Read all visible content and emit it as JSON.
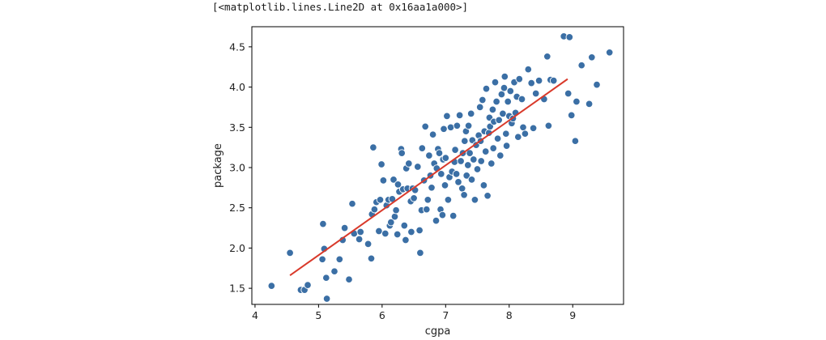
{
  "output_text": "[<matplotlib.lines.Line2D at 0x16aa1a000>]",
  "colors": {
    "points": "#3b6fa5",
    "point_edge": "#ffffff",
    "line": "#d93a2b",
    "axes": "#000000"
  },
  "chart_data": {
    "type": "scatter",
    "title": "",
    "xlabel": "cgpa",
    "ylabel": "package",
    "xlim": [
      3.95,
      9.8
    ],
    "ylim": [
      1.3,
      4.75
    ],
    "xticks": [
      4,
      5,
      6,
      7,
      8,
      9
    ],
    "yticks": [
      1.5,
      2.0,
      2.5,
      3.0,
      3.5,
      4.0,
      4.5
    ],
    "ytick_labels": [
      "1.5",
      "2.0",
      "2.5",
      "3.0",
      "3.5",
      "4.0",
      "4.5"
    ],
    "grid": false,
    "legend": false,
    "series": [
      {
        "type": "scatter",
        "points": [
          [
            4.26,
            1.53
          ],
          [
            4.55,
            1.94
          ],
          [
            4.72,
            1.48
          ],
          [
            4.78,
            1.48
          ],
          [
            4.83,
            1.54
          ],
          [
            5.07,
            2.3
          ],
          [
            5.06,
            1.86
          ],
          [
            5.09,
            1.99
          ],
          [
            5.12,
            1.63
          ],
          [
            5.13,
            1.37
          ],
          [
            5.25,
            1.71
          ],
          [
            5.33,
            1.86
          ],
          [
            5.38,
            2.1
          ],
          [
            5.41,
            2.25
          ],
          [
            5.48,
            1.61
          ],
          [
            5.53,
            2.55
          ],
          [
            5.56,
            2.18
          ],
          [
            5.64,
            2.11
          ],
          [
            5.66,
            2.2
          ],
          [
            5.78,
            2.05
          ],
          [
            5.83,
            1.87
          ],
          [
            5.86,
            3.25
          ],
          [
            5.84,
            2.42
          ],
          [
            5.88,
            2.48
          ],
          [
            5.91,
            2.57
          ],
          [
            5.95,
            2.21
          ],
          [
            5.97,
            2.6
          ],
          [
            5.99,
            3.04
          ],
          [
            6.02,
            2.84
          ],
          [
            6.05,
            2.18
          ],
          [
            6.07,
            2.53
          ],
          [
            6.1,
            2.6
          ],
          [
            6.12,
            2.28
          ],
          [
            6.14,
            2.32
          ],
          [
            6.16,
            2.61
          ],
          [
            6.18,
            2.85
          ],
          [
            6.2,
            2.39
          ],
          [
            6.22,
            2.47
          ],
          [
            6.24,
            2.17
          ],
          [
            6.25,
            2.79
          ],
          [
            6.27,
            2.7
          ],
          [
            6.3,
            3.23
          ],
          [
            6.31,
            3.18
          ],
          [
            6.33,
            2.73
          ],
          [
            6.35,
            2.28
          ],
          [
            6.37,
            2.1
          ],
          [
            6.38,
            2.99
          ],
          [
            6.4,
            2.74
          ],
          [
            6.42,
            3.05
          ],
          [
            6.45,
            2.58
          ],
          [
            6.46,
            2.2
          ],
          [
            6.48,
            2.74
          ],
          [
            6.5,
            2.62
          ],
          [
            6.52,
            2.72
          ],
          [
            6.56,
            3.01
          ],
          [
            6.59,
            2.22
          ],
          [
            6.6,
            1.94
          ],
          [
            6.62,
            2.47
          ],
          [
            6.63,
            3.24
          ],
          [
            6.66,
            2.84
          ],
          [
            6.68,
            3.51
          ],
          [
            6.7,
            2.48
          ],
          [
            6.72,
            2.6
          ],
          [
            6.74,
            3.15
          ],
          [
            6.76,
            2.9
          ],
          [
            6.78,
            2.75
          ],
          [
            6.8,
            3.41
          ],
          [
            6.82,
            3.05
          ],
          [
            6.85,
            2.34
          ],
          [
            6.86,
            2.99
          ],
          [
            6.88,
            3.23
          ],
          [
            6.9,
            3.18
          ],
          [
            6.92,
            2.48
          ],
          [
            6.93,
            2.92
          ],
          [
            6.95,
            2.41
          ],
          [
            6.96,
            3.1
          ],
          [
            6.97,
            3.48
          ],
          [
            6.99,
            2.78
          ],
          [
            7.0,
            3.12
          ],
          [
            7.02,
            3.64
          ],
          [
            7.04,
            2.6
          ],
          [
            7.06,
            2.88
          ],
          [
            7.08,
            3.5
          ],
          [
            7.1,
            2.95
          ],
          [
            7.12,
            2.4
          ],
          [
            7.14,
            3.07
          ],
          [
            7.15,
            3.22
          ],
          [
            7.17,
            2.92
          ],
          [
            7.18,
            3.52
          ],
          [
            7.2,
            2.82
          ],
          [
            7.22,
            3.65
          ],
          [
            7.24,
            3.08
          ],
          [
            7.26,
            2.74
          ],
          [
            7.27,
            3.18
          ],
          [
            7.29,
            2.66
          ],
          [
            7.3,
            3.33
          ],
          [
            7.32,
            3.45
          ],
          [
            7.33,
            2.9
          ],
          [
            7.35,
            3.03
          ],
          [
            7.36,
            3.52
          ],
          [
            7.38,
            3.18
          ],
          [
            7.4,
            3.67
          ],
          [
            7.41,
            2.85
          ],
          [
            7.42,
            3.34
          ],
          [
            7.44,
            3.1
          ],
          [
            7.46,
            2.6
          ],
          [
            7.48,
            3.28
          ],
          [
            7.5,
            2.98
          ],
          [
            7.52,
            3.4
          ],
          [
            7.54,
            3.75
          ],
          [
            7.55,
            3.33
          ],
          [
            7.56,
            3.08
          ],
          [
            7.58,
            3.84
          ],
          [
            7.6,
            2.78
          ],
          [
            7.61,
            3.45
          ],
          [
            7.63,
            3.2
          ],
          [
            7.64,
            3.98
          ],
          [
            7.66,
            2.65
          ],
          [
            7.68,
            3.43
          ],
          [
            7.69,
            3.62
          ],
          [
            7.7,
            3.51
          ],
          [
            7.72,
            3.05
          ],
          [
            7.74,
            3.72
          ],
          [
            7.75,
            3.24
          ],
          [
            7.76,
            3.57
          ],
          [
            7.78,
            4.06
          ],
          [
            7.8,
            3.82
          ],
          [
            7.82,
            3.36
          ],
          [
            7.84,
            3.59
          ],
          [
            7.86,
            3.15
          ],
          [
            7.88,
            3.91
          ],
          [
            7.9,
            3.67
          ],
          [
            7.92,
            3.99
          ],
          [
            7.93,
            4.13
          ],
          [
            7.95,
            3.42
          ],
          [
            7.96,
            3.27
          ],
          [
            7.98,
            3.82
          ],
          [
            8.0,
            3.64
          ],
          [
            8.02,
            3.95
          ],
          [
            8.04,
            3.55
          ],
          [
            8.06,
            3.61
          ],
          [
            8.08,
            4.06
          ],
          [
            8.1,
            3.68
          ],
          [
            8.12,
            3.88
          ],
          [
            8.14,
            3.38
          ],
          [
            8.16,
            4.1
          ],
          [
            8.2,
            3.85
          ],
          [
            8.22,
            3.5
          ],
          [
            8.25,
            3.42
          ],
          [
            8.3,
            4.22
          ],
          [
            8.35,
            4.05
          ],
          [
            8.38,
            3.49
          ],
          [
            8.42,
            3.92
          ],
          [
            8.47,
            4.08
          ],
          [
            8.55,
            3.85
          ],
          [
            8.6,
            4.38
          ],
          [
            8.62,
            3.52
          ],
          [
            8.65,
            4.09
          ],
          [
            8.7,
            4.08
          ],
          [
            8.86,
            4.63
          ],
          [
            8.93,
            3.92
          ],
          [
            8.95,
            4.62
          ],
          [
            8.98,
            3.65
          ],
          [
            9.04,
            3.33
          ],
          [
            9.06,
            3.82
          ],
          [
            9.14,
            4.27
          ],
          [
            9.26,
            3.79
          ],
          [
            9.3,
            4.37
          ],
          [
            9.38,
            4.03
          ],
          [
            9.58,
            4.43
          ]
        ]
      },
      {
        "type": "line",
        "points": [
          [
            4.55,
            1.66
          ],
          [
            8.92,
            4.1
          ]
        ]
      }
    ]
  }
}
